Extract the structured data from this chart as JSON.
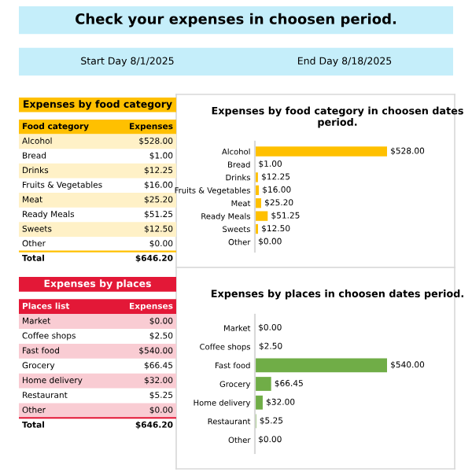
{
  "chart_data": [
    {
      "type": "other",
      "title": "Check your expenses in choosen period.",
      "annotations": [
        "Start Day 8/1/2025",
        "End Day 8/18/2025"
      ],
      "color": "#c5eefa"
    },
    {
      "type": "other",
      "title": "Expenses by food category",
      "color": "#ffc000",
      "annotations": [
        "Food category",
        "Expenses"
      ],
      "categories": [
        "Alcohol",
        "Bread",
        "Drinks",
        "Fruits & Vegetables",
        "Meat",
        "Ready Meals",
        "Sweets",
        "Other",
        "Total"
      ],
      "value_labels": [
        "$528.00",
        "$1.00",
        "$12.25",
        "$16.00",
        "$25.20",
        "$51.25",
        "$12.50",
        "$0.00",
        "$646.20"
      ]
    },
    {
      "type": "bar",
      "orientation": "horizontal",
      "title": "Expenses by food category in choosen dates period.",
      "color": "#ffc000",
      "categories": [
        "Alcohol",
        "Bread",
        "Drinks",
        "Fruits & Vegetables",
        "Meat",
        "Ready Meals",
        "Sweets",
        "Other"
      ],
      "values": [
        528,
        1,
        12.25,
        16,
        25.2,
        51.25,
        12.5,
        0
      ],
      "value_labels": [
        "$528.00",
        "$1.00",
        "$12.25",
        "$16.00",
        "$25.20",
        "$51.25",
        "$12.50",
        "$0.00"
      ],
      "grid": false,
      "legend": false
    },
    {
      "type": "other",
      "title": "Expenses by places",
      "color": "#e31837",
      "annotations": [
        "Places list",
        "Expenses"
      ],
      "categories": [
        "Market",
        "Coffee shops",
        "Fast food",
        "Grocery",
        "Home delivery",
        "Restaurant",
        "Other",
        "Total"
      ],
      "value_labels": [
        "$0.00",
        "$2.50",
        "$540.00",
        "$66.45",
        "$32.00",
        "$5.25",
        "$0.00",
        "$646.20"
      ]
    },
    {
      "type": "bar",
      "orientation": "horizontal",
      "title": "Expenses by places in choosen dates period.",
      "color": "#70ad47",
      "categories": [
        "Market",
        "Coffee shops",
        "Fast food",
        "Grocery",
        "Home delivery",
        "Restaurant",
        "Other"
      ],
      "values": [
        0,
        2.5,
        540,
        66.45,
        32,
        5.25,
        0
      ],
      "value_labels": [
        "$0.00",
        "$2.50",
        "$540.00",
        "$66.45",
        "$32.00",
        "$5.25",
        "$0.00"
      ],
      "grid": false,
      "legend": false
    }
  ]
}
